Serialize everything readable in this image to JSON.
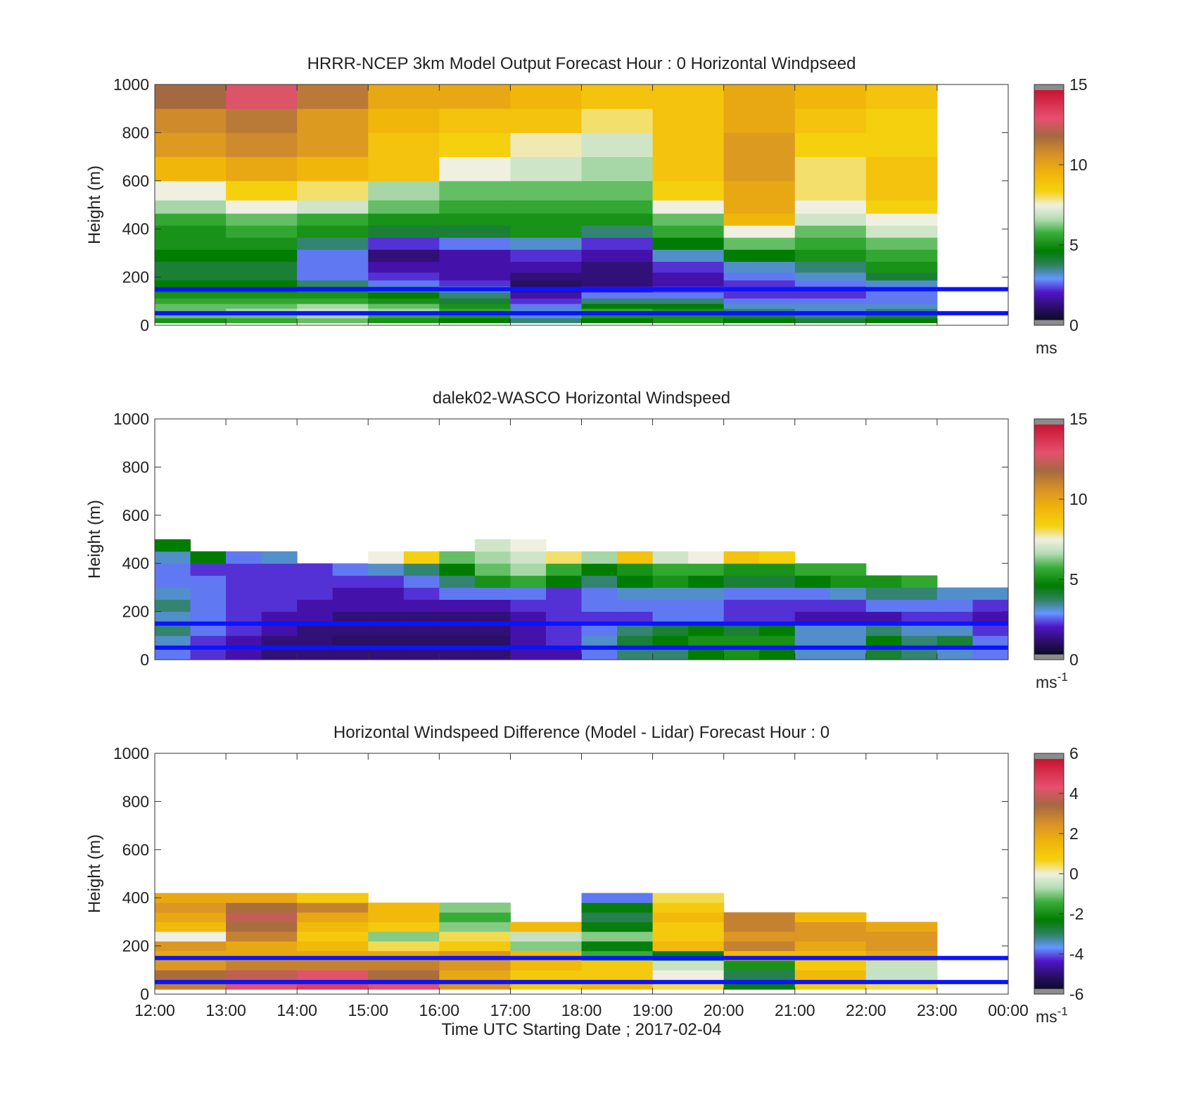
{
  "figure": {
    "xlabel": "Time UTC  Starting Date ; 2017-02-04",
    "xticks": [
      "12:00",
      "13:00",
      "14:00",
      "15:00",
      "16:00",
      "17:00",
      "18:00",
      "19:00",
      "20:00",
      "21:00",
      "22:00",
      "23:00",
      "00:00"
    ],
    "ylabel": "Height (m)",
    "yticks": [
      0,
      200,
      400,
      600,
      800,
      1000
    ]
  },
  "colors": {
    "reference_lines": "#0a14ff",
    "missing": "#8c8c8c",
    "background": "#ffffff"
  },
  "chart_data": [
    {
      "type": "heatmap",
      "title": "HRRR-NCEP 3km Model Output   Forecast Hour : 0 Horizontal Windpseed",
      "xlabel": "",
      "ylabel": "Height (m)",
      "ylim": [
        0,
        1000
      ],
      "colorbar": {
        "ticks": [
          0,
          5,
          10,
          15
        ],
        "unit": "ms",
        "unit_sup": "",
        "range": [
          0,
          15
        ]
      },
      "reference_lines_m": [
        50,
        150
      ],
      "x": [
        "12:00",
        "13:00",
        "14:00",
        "15:00",
        "16:00",
        "17:00",
        "18:00",
        "19:00",
        "20:00",
        "21:00",
        "22:00"
      ],
      "z_levels_m": [
        20,
        40,
        60,
        80,
        100,
        125,
        150,
        175,
        200,
        240,
        290,
        340,
        390,
        440,
        490,
        550,
        650,
        750,
        850,
        950
      ],
      "values": [
        [
          5.0,
          5.5,
          6.0,
          5.0,
          4.5,
          3.5,
          4.5,
          5.0,
          4.5,
          4.0,
          4.5
        ],
        [
          6.0,
          6.0,
          6.5,
          5.5,
          5.0,
          3.0,
          5.0,
          5.0,
          4.0,
          3.5,
          4.0
        ],
        [
          6.0,
          6.5,
          7.0,
          6.5,
          5.5,
          3.0,
          5.5,
          5.0,
          3.5,
          3.0,
          3.5
        ],
        [
          6.0,
          6.0,
          6.5,
          6.0,
          5.0,
          2.5,
          4.5,
          4.5,
          3.0,
          3.0,
          3.0
        ],
        [
          5.5,
          5.5,
          5.5,
          5.0,
          4.0,
          2.0,
          3.5,
          3.5,
          2.5,
          2.5,
          2.5
        ],
        [
          5.0,
          5.0,
          5.0,
          4.5,
          3.5,
          1.5,
          2.5,
          2.5,
          2.0,
          2.0,
          2.5
        ],
        [
          4.5,
          4.5,
          4.0,
          3.5,
          3.0,
          1.0,
          1.5,
          2.0,
          2.0,
          2.0,
          2.5
        ],
        [
          4.5,
          4.5,
          3.5,
          2.5,
          2.0,
          0.8,
          1.0,
          1.5,
          2.0,
          2.5,
          3.0
        ],
        [
          4.0,
          4.0,
          2.5,
          2.0,
          1.5,
          1.0,
          1.0,
          1.5,
          2.5,
          3.0,
          4.0
        ],
        [
          4.0,
          4.0,
          2.5,
          1.5,
          1.5,
          1.5,
          1.0,
          2.0,
          3.0,
          3.5,
          5.0
        ],
        [
          4.5,
          4.5,
          2.5,
          1.0,
          1.5,
          2.0,
          1.5,
          3.0,
          4.5,
          5.0,
          5.5
        ],
        [
          5.0,
          5.0,
          3.5,
          2.0,
          2.5,
          3.0,
          2.0,
          4.5,
          6.0,
          5.5,
          6.0
        ],
        [
          5.0,
          5.5,
          5.0,
          4.0,
          4.0,
          5.0,
          3.5,
          5.5,
          7.5,
          6.0,
          7.0
        ],
        [
          5.5,
          6.0,
          5.5,
          5.0,
          5.0,
          5.0,
          5.0,
          6.0,
          9.5,
          7.0,
          7.5
        ],
        [
          6.5,
          7.5,
          7.0,
          6.0,
          5.5,
          5.5,
          5.5,
          7.5,
          10.0,
          7.5,
          8.5
        ],
        [
          7.5,
          8.5,
          8.0,
          6.5,
          6.0,
          6.0,
          6.0,
          8.5,
          10.0,
          8.0,
          9.0
        ],
        [
          9.5,
          10.0,
          9.5,
          9.0,
          7.5,
          7.0,
          6.5,
          9.0,
          10.5,
          8.0,
          9.0
        ],
        [
          10.5,
          11.0,
          10.5,
          9.0,
          8.5,
          7.7,
          7.0,
          9.0,
          10.5,
          8.5,
          8.5
        ],
        [
          11.0,
          11.5,
          10.5,
          9.5,
          9.0,
          9.0,
          8.0,
          9.0,
          10.0,
          9.0,
          8.5
        ],
        [
          12.0,
          13.0,
          11.5,
          10.0,
          10.0,
          9.5,
          9.0,
          9.0,
          10.0,
          9.5,
          9.0
        ]
      ]
    },
    {
      "type": "heatmap",
      "title": "dalek02-WASCO  Horizontal Windspeed",
      "xlabel": "",
      "ylabel": "Height (m)",
      "ylim": [
        0,
        1000
      ],
      "colorbar": {
        "ticks": [
          0,
          5,
          10,
          15
        ],
        "unit": "ms",
        "unit_sup": "-1",
        "range": [
          0,
          15
        ]
      },
      "reference_lines_m": [
        50,
        150
      ],
      "x": [
        "12:00",
        "12:30",
        "13:00",
        "13:30",
        "14:00",
        "14:30",
        "15:00",
        "15:30",
        "16:00",
        "16:30",
        "17:00",
        "17:30",
        "18:00",
        "18:30",
        "19:00",
        "19:30",
        "20:00",
        "20:30",
        "21:00",
        "21:30",
        "22:00",
        "22:30",
        "23:00",
        "23:30"
      ],
      "z_levels_m": [
        25,
        75,
        125,
        175,
        225,
        275,
        325,
        375,
        425,
        475,
        525,
        575,
        625,
        675
      ],
      "values": [
        [
          2.5,
          2.0,
          1.5,
          1.0,
          1.0,
          1.0,
          1.0,
          1.0,
          1.0,
          1.0,
          1.5,
          1.5,
          2.5,
          3.5,
          3.5,
          4.5,
          5.0,
          4.5,
          3.0,
          3.0,
          4.0,
          3.5,
          3.0,
          2.5
        ],
        [
          3.0,
          2.0,
          1.5,
          1.0,
          1.0,
          0.8,
          0.8,
          0.8,
          0.8,
          0.8,
          1.5,
          2.0,
          3.0,
          4.0,
          4.5,
          5.0,
          5.0,
          5.0,
          3.0,
          3.0,
          4.5,
          3.5,
          4.0,
          2.5
        ],
        [
          3.5,
          2.5,
          2.0,
          1.5,
          1.0,
          1.0,
          1.0,
          1.0,
          1.0,
          1.0,
          1.5,
          2.0,
          2.5,
          3.5,
          4.0,
          4.5,
          4.0,
          4.5,
          3.0,
          3.0,
          3.5,
          3.0,
          3.0,
          2.0
        ],
        [
          3.0,
          2.5,
          2.0,
          1.5,
          1.5,
          1.0,
          1.0,
          1.0,
          1.0,
          1.0,
          1.5,
          2.0,
          2.0,
          2.0,
          2.5,
          2.5,
          2.0,
          2.0,
          1.5,
          1.5,
          1.5,
          2.0,
          2.0,
          1.5
        ],
        [
          3.5,
          2.5,
          2.0,
          2.0,
          1.5,
          1.5,
          1.5,
          1.5,
          1.5,
          1.5,
          2.0,
          2.0,
          2.5,
          2.5,
          2.5,
          2.5,
          2.0,
          2.0,
          2.0,
          2.0,
          2.5,
          2.5,
          2.5,
          2.0
        ],
        [
          3.0,
          2.5,
          2.0,
          2.0,
          2.0,
          1.5,
          1.5,
          2.0,
          2.5,
          2.5,
          2.5,
          2.0,
          2.5,
          3.0,
          3.0,
          3.0,
          2.5,
          2.5,
          2.5,
          3.0,
          3.5,
          3.5,
          3.0,
          3.0
        ],
        [
          2.5,
          2.5,
          2.0,
          2.0,
          2.0,
          2.0,
          2.0,
          2.5,
          3.5,
          5.0,
          5.5,
          4.5,
          3.5,
          4.5,
          5.0,
          4.5,
          4.0,
          4.0,
          4.5,
          5.0,
          5.0,
          5.5,
          null,
          null
        ],
        [
          2.5,
          2.0,
          2.0,
          2.0,
          2.0,
          2.5,
          3.0,
          3.5,
          4.5,
          6.0,
          6.5,
          5.5,
          4.5,
          5.0,
          5.5,
          5.5,
          5.0,
          5.0,
          5.5,
          5.5,
          null,
          null,
          null,
          null
        ],
        [
          3.0,
          4.5,
          2.5,
          3.0,
          null,
          null,
          7.5,
          8.5,
          6.0,
          6.5,
          7.0,
          8.0,
          6.5,
          9.0,
          7.0,
          7.5,
          9.0,
          8.5,
          null,
          null,
          null,
          null,
          null,
          null
        ],
        [
          4.5,
          null,
          null,
          null,
          null,
          null,
          null,
          null,
          null,
          7.0,
          7.5,
          null,
          null,
          null,
          null,
          null,
          null,
          null,
          null,
          null,
          null,
          null,
          null,
          null
        ],
        [
          null,
          null,
          null,
          null,
          null,
          null,
          null,
          null,
          null,
          null,
          null,
          null,
          null,
          null,
          null,
          null,
          null,
          null,
          null,
          null,
          null,
          null,
          null,
          null
        ],
        [
          null,
          null,
          null,
          null,
          null,
          null,
          null,
          null,
          null,
          null,
          null,
          null,
          null,
          null,
          null,
          null,
          null,
          null,
          null,
          null,
          null,
          null,
          null,
          null
        ],
        [
          null,
          null,
          null,
          null,
          null,
          null,
          null,
          null,
          null,
          null,
          null,
          null,
          null,
          null,
          null,
          null,
          null,
          null,
          null,
          null,
          null,
          null,
          null,
          null
        ],
        [
          null,
          null,
          null,
          null,
          null,
          null,
          null,
          null,
          null,
          null,
          null,
          null,
          null,
          null,
          null,
          null,
          null,
          null,
          null,
          null,
          null,
          null,
          null,
          null
        ]
      ]
    },
    {
      "type": "heatmap",
      "title": "Horizontal Windspeed Difference (Model - Lidar) Forecast Hour : 0",
      "xlabel": "Time UTC  Starting Date ; 2017-02-04",
      "ylabel": "Height (m)",
      "ylim": [
        0,
        1000
      ],
      "colorbar": {
        "ticks": [
          -6,
          -4,
          -2,
          0,
          2,
          4,
          6
        ],
        "unit": "ms",
        "unit_sup": "-1",
        "range": [
          -6,
          6
        ]
      },
      "reference_lines_m": [
        50,
        150
      ],
      "x": [
        "12:00",
        "13:00",
        "14:00",
        "15:00",
        "16:00",
        "17:00",
        "18:00",
        "19:00",
        "20:00",
        "21:00",
        "22:00"
      ],
      "z_levels_m": [
        40,
        80,
        120,
        160,
        200,
        240,
        280,
        320,
        360,
        400
      ],
      "values": [
        [
          3.0,
          4.5,
          5.0,
          4.5,
          2.5,
          1.0,
          1.5,
          0.5,
          -2.5,
          1.0,
          0.5
        ],
        [
          3.5,
          4.0,
          4.5,
          3.5,
          2.0,
          1.0,
          1.0,
          0.0,
          -3.0,
          1.5,
          -0.5
        ],
        [
          2.5,
          3.0,
          3.0,
          3.0,
          2.5,
          1.5,
          1.0,
          -0.5,
          -2.0,
          1.0,
          -0.5
        ],
        [
          2.0,
          2.0,
          2.0,
          2.0,
          2.5,
          1.5,
          -1.5,
          -2.5,
          1.5,
          1.5,
          2.0
        ],
        [
          2.5,
          2.0,
          1.5,
          0.5,
          1.0,
          -1.0,
          -2.5,
          1.5,
          3.0,
          2.0,
          2.5
        ],
        [
          0.0,
          3.0,
          1.0,
          -1.0,
          0.5,
          -0.5,
          -1.0,
          1.0,
          2.5,
          2.5,
          2.5
        ],
        [
          1.5,
          3.5,
          1.5,
          1.0,
          -1.0,
          1.5,
          -2.5,
          1.0,
          3.0,
          2.5,
          2.0
        ],
        [
          2.0,
          4.0,
          2.0,
          1.5,
          -1.5,
          null,
          -3.0,
          1.5,
          3.0,
          1.5,
          null
        ],
        [
          2.5,
          3.5,
          3.0,
          1.5,
          -1.0,
          null,
          -2.5,
          1.0,
          null,
          null,
          null
        ],
        [
          2.0,
          2.0,
          1.0,
          null,
          null,
          null,
          -4.0,
          0.5,
          null,
          null,
          null
        ]
      ]
    }
  ]
}
